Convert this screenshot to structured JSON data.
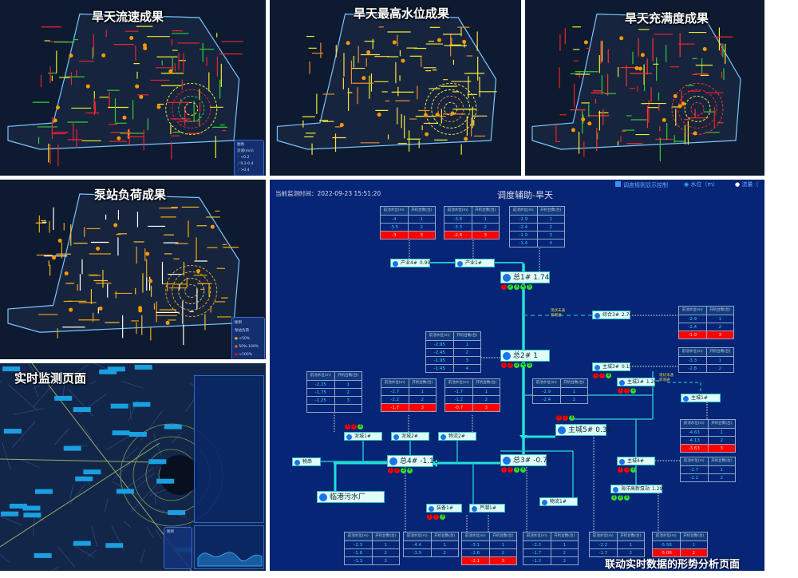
{
  "maps": [
    {
      "title": "旱天流速成果",
      "legend": {
        "title": "图例",
        "subtitle": "流速(m/s)",
        "items": [
          "<0.2",
          "0.2-0.4",
          ">0.4"
        ],
        "colors": [
          "#e23",
          "#ee2",
          "#3c3"
        ]
      }
    },
    {
      "title": "旱天最高水位成果"
    },
    {
      "title": "旱天充满度成果"
    },
    {
      "title": "泵站负荷成果",
      "legend": {
        "title": "图例",
        "subtitle": "泵站负荷",
        "items": [
          "<50%",
          "50%-100%",
          ">100%"
        ],
        "colors": [
          "#f5b800",
          "#f06010",
          "#f00"
        ]
      }
    },
    {
      "title": "实时监测页面",
      "legend": {
        "title": "图例"
      }
    }
  ],
  "diagram": {
    "time_label": "当前监测时间：2022-09-23 15:51:20",
    "title": "调度辅助-旱天",
    "controls": {
      "rule_toggle": "调度规则显示控制",
      "radio_level": "水位（m）",
      "radio_flow": "流量（"
    },
    "caption": "联动实时数据的形势分析页面",
    "table_headers": [
      "前池水位(m)",
      "开机台数(台)"
    ],
    "note": [
      "现状未通",
      "新增通"
    ],
    "tables": [
      {
        "rows": [
          [
            "-4",
            "1"
          ],
          [
            "-3.5",
            "2"
          ],
          [
            "-3",
            "3"
          ]
        ],
        "alert_row": 2
      },
      {
        "rows": [
          [
            "-3.8",
            "1"
          ],
          [
            "-3.3",
            "2"
          ],
          [
            "-2.8",
            "3"
          ]
        ],
        "alert_row": 2
      },
      {
        "rows": [
          [
            "-2.9",
            "1"
          ],
          [
            "-2.4",
            "2"
          ],
          [
            "-1.9",
            "3"
          ],
          [
            "-1.4",
            "4"
          ]
        ]
      },
      {
        "rows": [
          [
            "-2.9",
            "1"
          ],
          [
            "-2.4",
            "2"
          ],
          [
            "-1.9",
            "3"
          ]
        ],
        "alert_row": 2
      },
      {
        "rows": [
          [
            "-2.95",
            "1"
          ],
          [
            "-2.45",
            "2"
          ],
          [
            "-1.95",
            "3"
          ],
          [
            "-1.45",
            "4"
          ]
        ]
      },
      {
        "rows": [
          [
            "-3.3",
            "1"
          ],
          [
            "-2.8",
            "2"
          ]
        ]
      },
      {
        "rows": [
          [
            "-2.25",
            "1"
          ],
          [
            "-1.75",
            "2"
          ],
          [
            "-1.25",
            "3"
          ],
          [
            "",
            ""
          ]
        ]
      },
      {
        "rows": [
          [
            "-2.7",
            "1"
          ],
          [
            "-2.2",
            "2"
          ],
          [
            "-1.7",
            "3"
          ]
        ],
        "alert_row": 2
      },
      {
        "rows": [
          [
            "-1.7",
            "1"
          ],
          [
            "-1.2",
            "2"
          ],
          [
            "-0.7",
            "3"
          ]
        ],
        "alert_row": 2
      },
      {
        "rows": [
          [
            "-2.9",
            "1"
          ],
          [
            "-2.4",
            "2"
          ]
        ]
      },
      {
        "rows": [
          [
            "-4.63",
            "1"
          ],
          [
            "-4.13",
            "2"
          ],
          [
            "-3.63",
            "3"
          ]
        ],
        "alert_row": 2
      },
      {
        "rows": [
          [
            "-2.7",
            "1"
          ],
          [
            "-2.2",
            "2"
          ]
        ]
      },
      {
        "rows": [
          [
            "-2.3",
            "1"
          ],
          [
            "-1.8",
            "2"
          ],
          [
            "-1.3",
            "3"
          ]
        ]
      },
      {
        "rows": [
          [
            "-4.4",
            "1"
          ],
          [
            "-3.9",
            "2"
          ]
        ]
      },
      {
        "rows": [
          [
            "-3.1",
            "1"
          ],
          [
            "-2.6",
            "2"
          ],
          [
            "-2.1",
            "3"
          ]
        ],
        "alert_row": 2
      },
      {
        "rows": [
          [
            "-2.2",
            "1"
          ],
          [
            "-1.7",
            "2"
          ],
          [
            "-1.2",
            "3"
          ]
        ]
      },
      {
        "rows": [
          [
            "-2.2",
            "1"
          ],
          [
            "-1.7",
            "2"
          ]
        ]
      },
      {
        "rows": [
          [
            "-5.56",
            "1"
          ],
          [
            "-5.06",
            "2"
          ]
        ],
        "alert_row": 1
      }
    ],
    "nodes": [
      {
        "name": "产业4#",
        "value": "0.99"
      },
      {
        "name": "产业1#",
        "value": ""
      },
      {
        "name": "总1#",
        "value": "1.74",
        "pumps": [
          "r",
          "g",
          "g",
          "g",
          "g"
        ]
      },
      {
        "name": "综合3#",
        "value": "2.74"
      },
      {
        "name": "总2#",
        "value": "1",
        "pumps": [
          "r",
          "r",
          "g",
          "g",
          "g"
        ]
      },
      {
        "name": "主城3#",
        "value": "0.15",
        "pumps": [
          "r",
          "r",
          "g"
        ]
      },
      {
        "name": "主城2#",
        "value": "1.26",
        "pumps": [
          "r",
          "r",
          "g"
        ]
      },
      {
        "name": "主城1#",
        "value": ""
      },
      {
        "name": "泥城1#",
        "value": "",
        "pumps": [
          "r",
          "r",
          "g"
        ]
      },
      {
        "name": "泥城2#",
        "value": ""
      },
      {
        "name": "物流2#",
        "value": ""
      },
      {
        "name": "主城5#",
        "value": "0.32",
        "pumps": [
          "r",
          "r",
          "g"
        ]
      },
      {
        "name": "总4#",
        "value": "-1.16",
        "pumps": [
          "r",
          "r",
          "g",
          "g"
        ]
      },
      {
        "name": "总3#",
        "value": "-0.76",
        "pumps": [
          "r",
          "r",
          "g",
          "g"
        ]
      },
      {
        "name": "物串",
        "value": ""
      },
      {
        "name": "主城4#",
        "value": "",
        "pumps": [
          "r",
          "r",
          "g"
        ]
      },
      {
        "name": "海洋高新泵站",
        "value": "1.29",
        "pumps": [
          "g",
          "g",
          "g"
        ]
      },
      {
        "name": "临港污水厂",
        "value": ""
      },
      {
        "name": "物流1#",
        "value": ""
      },
      {
        "name": "装备1#",
        "value": "",
        "pumps": [
          "r",
          "r",
          "g"
        ]
      },
      {
        "name": "芦潮1#",
        "value": ""
      }
    ]
  }
}
